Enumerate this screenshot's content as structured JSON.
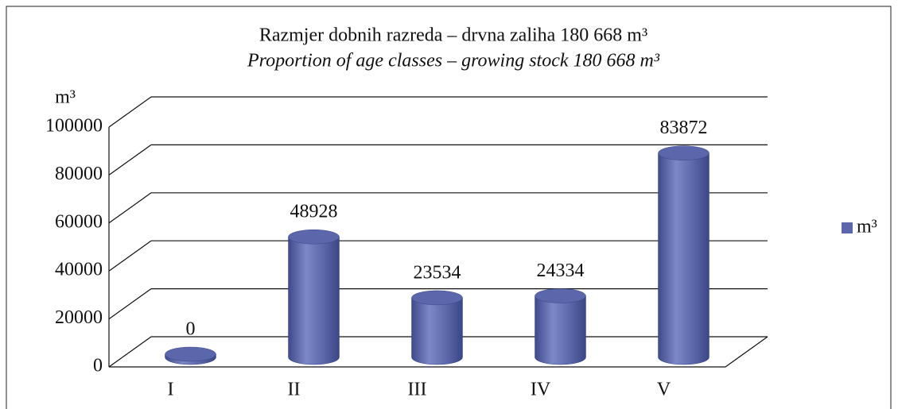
{
  "chart_data": {
    "type": "bar",
    "title": "Razmjer dobnih razreda – drvna zaliha 180 668 m³",
    "subtitle": "Proportion of age classes – growing stock 180 668 m³",
    "y_label": "m³",
    "categories": [
      "I",
      "II",
      "III",
      "IV",
      "V"
    ],
    "series": [
      {
        "name": "m³",
        "color": "#5b67aa",
        "values": [
          0,
          48928,
          23534,
          24334,
          83872
        ]
      }
    ],
    "ylim": [
      0,
      100000
    ],
    "yticks": [
      0,
      20000,
      40000,
      60000,
      80000,
      100000
    ],
    "grid": true,
    "legend": "right"
  }
}
